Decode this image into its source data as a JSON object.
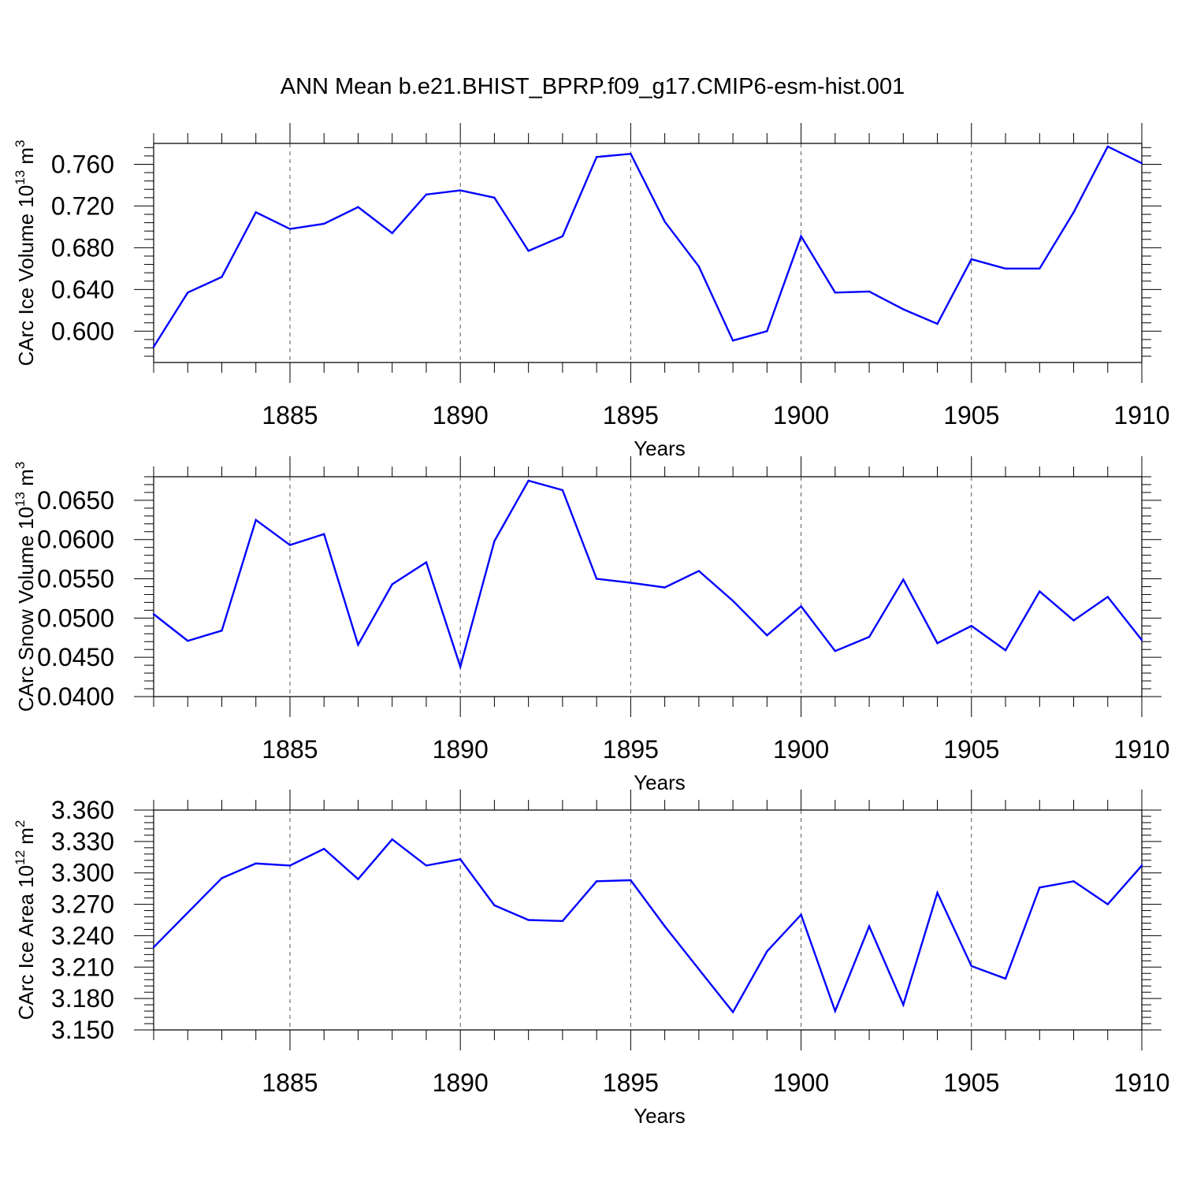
{
  "title": "ANN Mean b.e21.BHIST_BPRP.f09_g17.CMIP6-esm-hist.001",
  "line_color": "#0000ff",
  "chart_data": [
    {
      "type": "line",
      "id": "ice-volume",
      "ylabel": "CArc Ice Volume",
      "ylabel_unit_base": "10",
      "ylabel_unit_exp": "13",
      "ylabel_unit_suffix": " m",
      "ylabel_unit_suffix_exp": "3",
      "xlabel": "Years",
      "xlim": [
        1881,
        1910
      ],
      "ylim": [
        0.57,
        0.78
      ],
      "yticks": [
        0.6,
        0.64,
        0.68,
        0.72,
        0.76
      ],
      "ytick_labels": [
        "0.600",
        "0.640",
        "0.680",
        "0.720",
        "0.760"
      ],
      "xticks": [
        1885,
        1890,
        1895,
        1900,
        1905,
        1910
      ],
      "xtick_labels": [
        "1885",
        "1890",
        "1895",
        "1900",
        "1905",
        "1910"
      ],
      "x": [
        1881,
        1882,
        1883,
        1884,
        1885,
        1886,
        1887,
        1888,
        1889,
        1890,
        1891,
        1892,
        1893,
        1894,
        1895,
        1896,
        1897,
        1898,
        1899,
        1900,
        1901,
        1902,
        1903,
        1904,
        1905,
        1906,
        1907,
        1908,
        1909,
        1910
      ],
      "values": [
        0.585,
        0.637,
        0.652,
        0.714,
        0.698,
        0.703,
        0.719,
        0.694,
        0.731,
        0.735,
        0.728,
        0.677,
        0.691,
        0.767,
        0.77,
        0.705,
        0.662,
        0.591,
        0.6,
        0.691,
        0.637,
        0.638,
        0.621,
        0.607,
        0.669,
        0.66,
        0.66,
        0.714,
        0.777,
        0.761
      ]
    },
    {
      "type": "line",
      "id": "snow-volume",
      "ylabel": "CArc Snow Volume",
      "ylabel_unit_base": "10",
      "ylabel_unit_exp": "13",
      "ylabel_unit_suffix": " m",
      "ylabel_unit_suffix_exp": "3",
      "xlabel": "Years",
      "xlim": [
        1881,
        1910
      ],
      "ylim": [
        0.04,
        0.068
      ],
      "yticks": [
        0.04,
        0.045,
        0.05,
        0.055,
        0.06,
        0.065
      ],
      "ytick_labels": [
        "0.0400",
        "0.0450",
        "0.0500",
        "0.0550",
        "0.0600",
        "0.0650"
      ],
      "xticks": [
        1885,
        1890,
        1895,
        1900,
        1905,
        1910
      ],
      "xtick_labels": [
        "1885",
        "1890",
        "1895",
        "1900",
        "1905",
        "1910"
      ],
      "x": [
        1881,
        1882,
        1883,
        1884,
        1885,
        1886,
        1887,
        1888,
        1889,
        1890,
        1891,
        1892,
        1893,
        1894,
        1895,
        1896,
        1897,
        1898,
        1899,
        1900,
        1901,
        1902,
        1903,
        1904,
        1905,
        1906,
        1907,
        1908,
        1909,
        1910
      ],
      "values": [
        0.0505,
        0.0471,
        0.0484,
        0.0625,
        0.0593,
        0.0607,
        0.0466,
        0.0543,
        0.0571,
        0.0438,
        0.0598,
        0.0675,
        0.0663,
        0.055,
        0.0545,
        0.0539,
        0.056,
        0.0522,
        0.0478,
        0.0515,
        0.0458,
        0.0476,
        0.0549,
        0.0468,
        0.049,
        0.0459,
        0.0534,
        0.0497,
        0.0527,
        0.0472
      ]
    },
    {
      "type": "line",
      "id": "ice-area",
      "ylabel": "CArc Ice Area",
      "ylabel_unit_base": "10",
      "ylabel_unit_exp": "12",
      "ylabel_unit_suffix": " m",
      "ylabel_unit_suffix_exp": "2",
      "xlabel": "Years",
      "xlim": [
        1881,
        1910
      ],
      "ylim": [
        3.15,
        3.36
      ],
      "yticks": [
        3.15,
        3.18,
        3.21,
        3.24,
        3.27,
        3.3,
        3.33,
        3.36
      ],
      "ytick_labels": [
        "3.150",
        "3.180",
        "3.210",
        "3.240",
        "3.270",
        "3.300",
        "3.330",
        "3.360"
      ],
      "xticks": [
        1885,
        1890,
        1895,
        1900,
        1905,
        1910
      ],
      "xtick_labels": [
        "1885",
        "1890",
        "1895",
        "1900",
        "1905",
        "1910"
      ],
      "x": [
        1881,
        1882,
        1883,
        1884,
        1885,
        1886,
        1887,
        1888,
        1889,
        1890,
        1891,
        1892,
        1893,
        1894,
        1895,
        1896,
        1897,
        1898,
        1899,
        1900,
        1901,
        1902,
        1903,
        1904,
        1905,
        1906,
        1907,
        1908,
        1909,
        1910
      ],
      "values": [
        3.229,
        3.262,
        3.295,
        3.309,
        3.307,
        3.323,
        3.294,
        3.332,
        3.307,
        3.313,
        3.269,
        3.255,
        3.254,
        3.292,
        3.293,
        3.249,
        3.208,
        3.167,
        3.225,
        3.26,
        3.168,
        3.249,
        3.174,
        3.281,
        3.211,
        3.199,
        3.286,
        3.292,
        3.27,
        3.307
      ]
    }
  ]
}
